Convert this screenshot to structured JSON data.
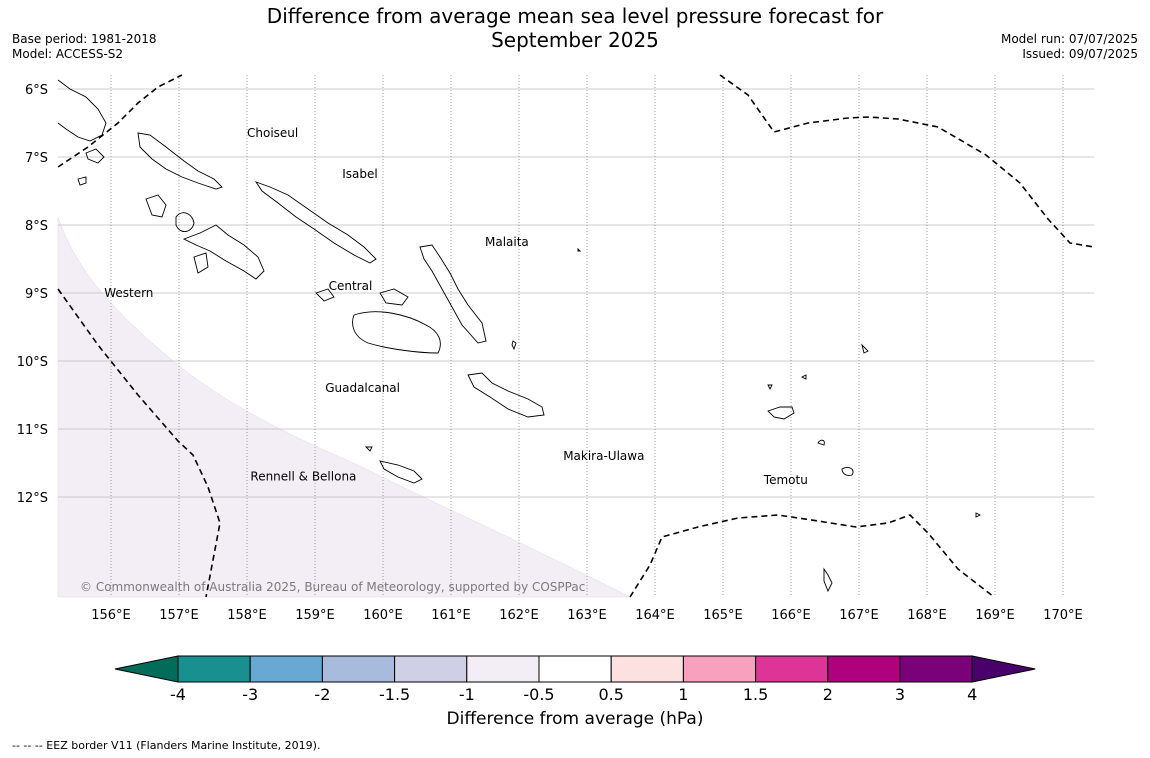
{
  "title": {
    "line1": "Difference from average mean sea level pressure forecast for",
    "line2": "September 2025"
  },
  "meta_left": {
    "base_period": "Base period: 1981-2018",
    "model": "Model: ACCESS-S2"
  },
  "meta_right": {
    "model_run": "Model run: 07/07/2025",
    "issued": "Issued: 09/07/2025"
  },
  "map": {
    "lat_labels": [
      "6°S",
      "7°S",
      "8°S",
      "9°S",
      "10°S",
      "11°S",
      "12°S"
    ],
    "lon_labels": [
      "156°E",
      "157°E",
      "158°E",
      "159°E",
      "160°E",
      "161°E",
      "162°E",
      "163°E",
      "164°E",
      "165°E",
      "166°E",
      "167°E",
      "168°E",
      "169°E",
      "170°E"
    ],
    "province_labels": [
      {
        "name": "Choiseul",
        "lon": 158.0,
        "lat": -6.65
      },
      {
        "name": "Isabel",
        "lon": 159.4,
        "lat": -7.25
      },
      {
        "name": "Malaita",
        "lon": 161.5,
        "lat": -8.25
      },
      {
        "name": "Western",
        "lon": 155.9,
        "lat": -9.0
      },
      {
        "name": "Central",
        "lon": 159.2,
        "lat": -8.9
      },
      {
        "name": "Guadalcanal",
        "lon": 159.15,
        "lat": -10.4
      },
      {
        "name": "Makira-Ulawa",
        "lon": 162.65,
        "lat": -11.4
      },
      {
        "name": "Rennell & Bellona",
        "lon": 158.05,
        "lat": -11.7
      },
      {
        "name": "Temotu",
        "lon": 165.6,
        "lat": -11.75
      }
    ],
    "copyright": "© Commonwealth of Australia 2025, Bureau of Meteorology, supported by COSPPac",
    "anomaly_shading": {
      "bin": "-1 to -0.5",
      "color": "#f3edf5",
      "region": "south-west corner"
    }
  },
  "colorbar": {
    "title": "Difference from average (hPa)",
    "tick_labels": [
      "-4",
      "-3",
      "-2",
      "-1.5",
      "-1",
      "-0.5",
      "0.5",
      "1",
      "1.5",
      "2",
      "3",
      "4"
    ],
    "colors": [
      "#1a8f8f",
      "#68a8d2",
      "#a8bbdc",
      "#cfd0e5",
      "#f3edf5",
      "#ffffff",
      "#fde0e0",
      "#f7a1be",
      "#dd3497",
      "#ae017e",
      "#7a0177"
    ],
    "extend_low_color": "#016c59",
    "extend_high_color": "#49006a"
  },
  "footnote": "--  --  -- EEZ border V11 (Flanders Marine Institute, 2019)."
}
